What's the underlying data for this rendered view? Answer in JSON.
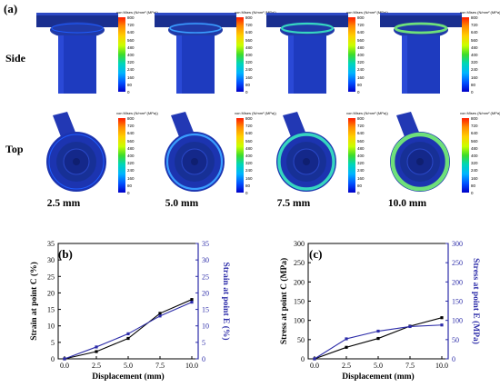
{
  "figure": {
    "panel_a_label": "(a)",
    "row_labels": [
      "Side",
      "Top"
    ],
    "column_labels": [
      "2.5 mm",
      "5.0 mm",
      "7.5 mm",
      "10.0 mm"
    ],
    "colorbar_title": "von Mises (N/mm² (MPa))",
    "colorbar_ticks": [
      "800",
      "720",
      "640",
      "560",
      "480",
      "400",
      "320",
      "240",
      "160",
      "80",
      "0"
    ]
  },
  "chart_data": [
    {
      "type": "line",
      "panel_label": "(b)",
      "x": [
        0.0,
        2.5,
        5.0,
        7.5,
        10.0
      ],
      "xlabel": "Displacement (mm)",
      "xlim": [
        -0.5,
        10.5
      ],
      "xticks": [
        "0.0",
        "2.5",
        "5.0",
        "7.5",
        "10.0"
      ],
      "ylabel_left": "Strain at point C (%)",
      "ylabel_right": "Strain at point E (%)",
      "ylim": [
        0,
        35
      ],
      "yticks": [
        "0",
        "5",
        "10",
        "15",
        "20",
        "25",
        "30",
        "35"
      ],
      "series": [
        {
          "axis": "left",
          "color": "#000000",
          "values": [
            0.0,
            2.2,
            6.2,
            13.8,
            18.0
          ]
        },
        {
          "axis": "right",
          "color": "#2b2ba8",
          "values": [
            0.0,
            3.6,
            7.6,
            13.0,
            17.2
          ]
        }
      ]
    },
    {
      "type": "line",
      "panel_label": "(c)",
      "x": [
        0.0,
        2.5,
        5.0,
        7.5,
        10.0
      ],
      "xlabel": "Displacement (mm)",
      "xlim": [
        -0.5,
        10.5
      ],
      "xticks": [
        "0.0",
        "2.5",
        "5.0",
        "7.5",
        "10.0"
      ],
      "ylabel_left": "Stress at point C (MPa)",
      "ylabel_right": "Stress at point E (MPa)",
      "ylim": [
        0,
        300
      ],
      "yticks": [
        "0",
        "50",
        "100",
        "150",
        "200",
        "250",
        "300"
      ],
      "series": [
        {
          "axis": "left",
          "color": "#000000",
          "values": [
            0,
            30,
            53,
            85,
            107
          ]
        },
        {
          "axis": "right",
          "color": "#2b2ba8",
          "values": [
            0,
            52,
            72,
            84,
            88
          ]
        }
      ]
    }
  ]
}
